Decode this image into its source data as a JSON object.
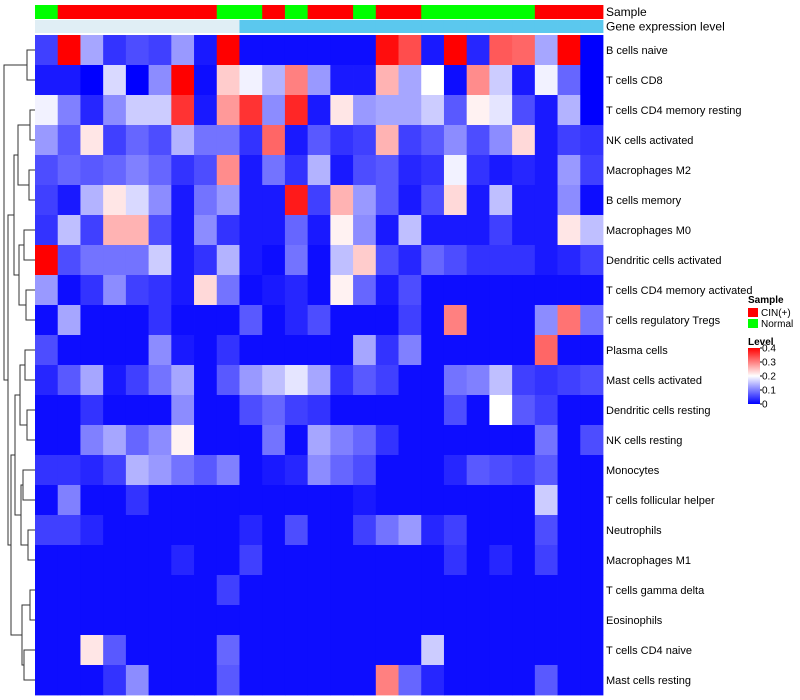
{
  "chart_data": {
    "type": "heatmap",
    "title": "",
    "annotation_rows": [
      {
        "name": "Sample",
        "label": "Sample"
      },
      {
        "name": "Gene expression level",
        "label": "Gene expression level"
      }
    ],
    "sample_groups": [
      "Normal",
      "CIN(+)",
      "CIN(+)",
      "CIN(+)",
      "CIN(+)",
      "CIN(+)",
      "CIN(+)",
      "CIN(+)",
      "Normal",
      "Normal",
      "CIN(+)",
      "Normal",
      "CIN(+)",
      "CIN(+)",
      "Normal",
      "CIN(+)",
      "CIN(+)",
      "Normal",
      "Normal",
      "Normal",
      "Normal",
      "Normal",
      "CIN(+)",
      "CIN(+)",
      "CIN(+)"
    ],
    "gene_expression_level": [
      "low",
      "low",
      "low",
      "low",
      "low",
      "low",
      "low",
      "low",
      "low",
      "high",
      "high",
      "high",
      "high",
      "high",
      "high",
      "high",
      "high",
      "high",
      "high",
      "high",
      "high",
      "high",
      "high",
      "high",
      "high"
    ],
    "rows": [
      "B cells naive",
      "T cells CD8",
      "T cells CD4 memory resting",
      "NK cells activated",
      "Macrophages M2",
      "B cells memory",
      "Macrophages M0",
      "Dendritic cells activated",
      "T cells CD4 memory activated",
      "T cells regulatory  Tregs",
      "Plasma cells",
      "Mast cells activated",
      "Dendritic cells resting",
      "NK cells resting",
      "Monocytes",
      "T cells follicular helper",
      "Neutrophils",
      "Macrophages M1",
      "T cells gamma delta",
      "Eosinophils",
      "T cells CD4 naive",
      "Mast cells resting"
    ],
    "values": [
      [
        0.05,
        0.4,
        0.13,
        0.04,
        0.06,
        0.05,
        0.12,
        0.02,
        0.4,
        0.01,
        0.01,
        0.01,
        0.01,
        0.01,
        0.01,
        0.39,
        0.34,
        0.02,
        0.4,
        0.03,
        0.33,
        0.32,
        0.13,
        0.4,
        0.0
      ],
      [
        0.02,
        0.02,
        0.0,
        0.17,
        0.0,
        0.11,
        0.4,
        0.01,
        0.24,
        0.19,
        0.14,
        0.3,
        0.12,
        0.02,
        0.02,
        0.26,
        0.13,
        0.2,
        0.01,
        0.29,
        0.16,
        0.02,
        0.19,
        0.08,
        0.0
      ],
      [
        0.19,
        0.1,
        0.03,
        0.11,
        0.16,
        0.16,
        0.36,
        0.02,
        0.28,
        0.36,
        0.11,
        0.37,
        0.02,
        0.22,
        0.12,
        0.13,
        0.13,
        0.16,
        0.07,
        0.21,
        0.18,
        0.06,
        0.02,
        0.14,
        0.0
      ],
      [
        0.12,
        0.07,
        0.22,
        0.05,
        0.08,
        0.06,
        0.14,
        0.09,
        0.09,
        0.04,
        0.32,
        0.02,
        0.07,
        0.04,
        0.05,
        0.26,
        0.05,
        0.07,
        0.11,
        0.06,
        0.11,
        0.23,
        0.02,
        0.05,
        0.04
      ],
      [
        0.06,
        0.08,
        0.07,
        0.08,
        0.1,
        0.08,
        0.04,
        0.06,
        0.29,
        0.02,
        0.09,
        0.04,
        0.14,
        0.02,
        0.06,
        0.07,
        0.03,
        0.04,
        0.19,
        0.04,
        0.02,
        0.03,
        0.02,
        0.12,
        0.05
      ],
      [
        0.05,
        0.02,
        0.14,
        0.22,
        0.17,
        0.11,
        0.02,
        0.09,
        0.12,
        0.02,
        0.02,
        0.38,
        0.05,
        0.26,
        0.12,
        0.07,
        0.02,
        0.06,
        0.23,
        0.02,
        0.15,
        0.02,
        0.02,
        0.11,
        0.01
      ],
      [
        0.04,
        0.15,
        0.05,
        0.26,
        0.26,
        0.06,
        0.02,
        0.11,
        0.04,
        0.02,
        0.02,
        0.08,
        0.02,
        0.21,
        0.11,
        0.02,
        0.15,
        0.02,
        0.02,
        0.02,
        0.05,
        0.02,
        0.02,
        0.22,
        0.15
      ],
      [
        0.4,
        0.06,
        0.09,
        0.09,
        0.09,
        0.16,
        0.02,
        0.04,
        0.14,
        0.02,
        0.01,
        0.09,
        0.01,
        0.15,
        0.24,
        0.06,
        0.03,
        0.08,
        0.06,
        0.04,
        0.04,
        0.04,
        0.02,
        0.03,
        0.05
      ],
      [
        0.12,
        0.01,
        0.04,
        0.11,
        0.05,
        0.04,
        0.02,
        0.23,
        0.09,
        0.01,
        0.02,
        0.03,
        0.01,
        0.21,
        0.08,
        0.02,
        0.06,
        0.01,
        0.01,
        0.01,
        0.01,
        0.01,
        0.01,
        0.01,
        0.01
      ],
      [
        0.01,
        0.13,
        0.01,
        0.01,
        0.01,
        0.04,
        0.01,
        0.01,
        0.01,
        0.07,
        0.01,
        0.03,
        0.06,
        0.01,
        0.01,
        0.01,
        0.05,
        0.01,
        0.3,
        0.01,
        0.01,
        0.01,
        0.11,
        0.31,
        0.09
      ],
      [
        0.06,
        0.01,
        0.01,
        0.01,
        0.01,
        0.11,
        0.02,
        0.01,
        0.04,
        0.01,
        0.01,
        0.01,
        0.01,
        0.01,
        0.13,
        0.04,
        0.1,
        0.01,
        0.01,
        0.01,
        0.01,
        0.01,
        0.32,
        0.01,
        0.01
      ],
      [
        0.03,
        0.07,
        0.13,
        0.02,
        0.05,
        0.09,
        0.13,
        0.01,
        0.07,
        0.12,
        0.15,
        0.18,
        0.13,
        0.04,
        0.07,
        0.05,
        0.01,
        0.01,
        0.09,
        0.1,
        0.15,
        0.05,
        0.04,
        0.05,
        0.06
      ],
      [
        0.01,
        0.01,
        0.04,
        0.01,
        0.01,
        0.01,
        0.11,
        0.01,
        0.01,
        0.06,
        0.08,
        0.05,
        0.04,
        0.01,
        0.01,
        0.01,
        0.01,
        0.01,
        0.06,
        0.01,
        0.2,
        0.07,
        0.05,
        0.01,
        0.01
      ],
      [
        0.01,
        0.01,
        0.1,
        0.13,
        0.08,
        0.11,
        0.21,
        0.01,
        0.01,
        0.01,
        0.09,
        0.01,
        0.13,
        0.1,
        0.08,
        0.04,
        0.01,
        0.01,
        0.01,
        0.01,
        0.01,
        0.01,
        0.09,
        0.01,
        0.06
      ],
      [
        0.04,
        0.04,
        0.03,
        0.05,
        0.14,
        0.12,
        0.09,
        0.07,
        0.1,
        0.01,
        0.02,
        0.03,
        0.11,
        0.08,
        0.06,
        0.01,
        0.01,
        0.01,
        0.03,
        0.07,
        0.06,
        0.05,
        0.07,
        0.01,
        0.01
      ],
      [
        0.01,
        0.1,
        0.01,
        0.01,
        0.04,
        0.01,
        0.01,
        0.01,
        0.01,
        0.01,
        0.01,
        0.01,
        0.01,
        0.01,
        0.02,
        0.01,
        0.01,
        0.01,
        0.01,
        0.01,
        0.01,
        0.01,
        0.16,
        0.01,
        0.01
      ],
      [
        0.05,
        0.05,
        0.03,
        0.01,
        0.01,
        0.01,
        0.01,
        0.01,
        0.01,
        0.03,
        0.01,
        0.06,
        0.01,
        0.01,
        0.05,
        0.09,
        0.12,
        0.03,
        0.05,
        0.01,
        0.01,
        0.01,
        0.06,
        0.01,
        0.01
      ],
      [
        0.01,
        0.01,
        0.01,
        0.01,
        0.01,
        0.01,
        0.03,
        0.01,
        0.01,
        0.05,
        0.01,
        0.01,
        0.01,
        0.01,
        0.01,
        0.01,
        0.01,
        0.01,
        0.04,
        0.01,
        0.03,
        0.01,
        0.05,
        0.01,
        0.01
      ],
      [
        0.01,
        0.01,
        0.01,
        0.01,
        0.01,
        0.01,
        0.01,
        0.01,
        0.05,
        0.01,
        0.01,
        0.01,
        0.01,
        0.01,
        0.01,
        0.01,
        0.01,
        0.01,
        0.01,
        0.01,
        0.01,
        0.01,
        0.01,
        0.01,
        0.01
      ],
      [
        0.01,
        0.01,
        0.01,
        0.01,
        0.01,
        0.01,
        0.01,
        0.01,
        0.01,
        0.01,
        0.01,
        0.01,
        0.01,
        0.01,
        0.01,
        0.01,
        0.01,
        0.01,
        0.01,
        0.01,
        0.01,
        0.01,
        0.01,
        0.01,
        0.01
      ],
      [
        0.01,
        0.01,
        0.22,
        0.07,
        0.01,
        0.01,
        0.01,
        0.01,
        0.08,
        0.01,
        0.01,
        0.01,
        0.01,
        0.01,
        0.01,
        0.01,
        0.01,
        0.16,
        0.01,
        0.01,
        0.01,
        0.01,
        0.01,
        0.01,
        0.01
      ],
      [
        0.01,
        0.01,
        0.01,
        0.04,
        0.11,
        0.01,
        0.01,
        0.01,
        0.07,
        0.01,
        0.01,
        0.01,
        0.01,
        0.01,
        0.01,
        0.3,
        0.08,
        0.03,
        0.01,
        0.01,
        0.01,
        0.01,
        0.07,
        0.01,
        0.01
      ]
    ],
    "color_scale": {
      "min": 0,
      "max": 0.4,
      "low": "#0000ff",
      "mid": "#ffffff",
      "high": "#ff0000",
      "mid_value": 0.2
    },
    "annotation_colors": {
      "CIN(+)": "#ff0000",
      "Normal": "#00ff00",
      "low": "#e0eef5",
      "high": "#5bc8ee"
    },
    "legends": [
      {
        "title": "Sample",
        "entries": [
          {
            "label": "CIN(+)",
            "color": "#ff0000"
          },
          {
            "label": "Normal",
            "color": "#00ff00"
          }
        ]
      },
      {
        "title": "Level",
        "ticks": [
          0.4,
          0.3,
          0.2,
          0.1,
          0
        ],
        "tick_labels": [
          "0.4",
          "0.3",
          "0.2",
          "0.1",
          "0"
        ]
      }
    ],
    "dendrogram": "row clustering tree (left)"
  }
}
